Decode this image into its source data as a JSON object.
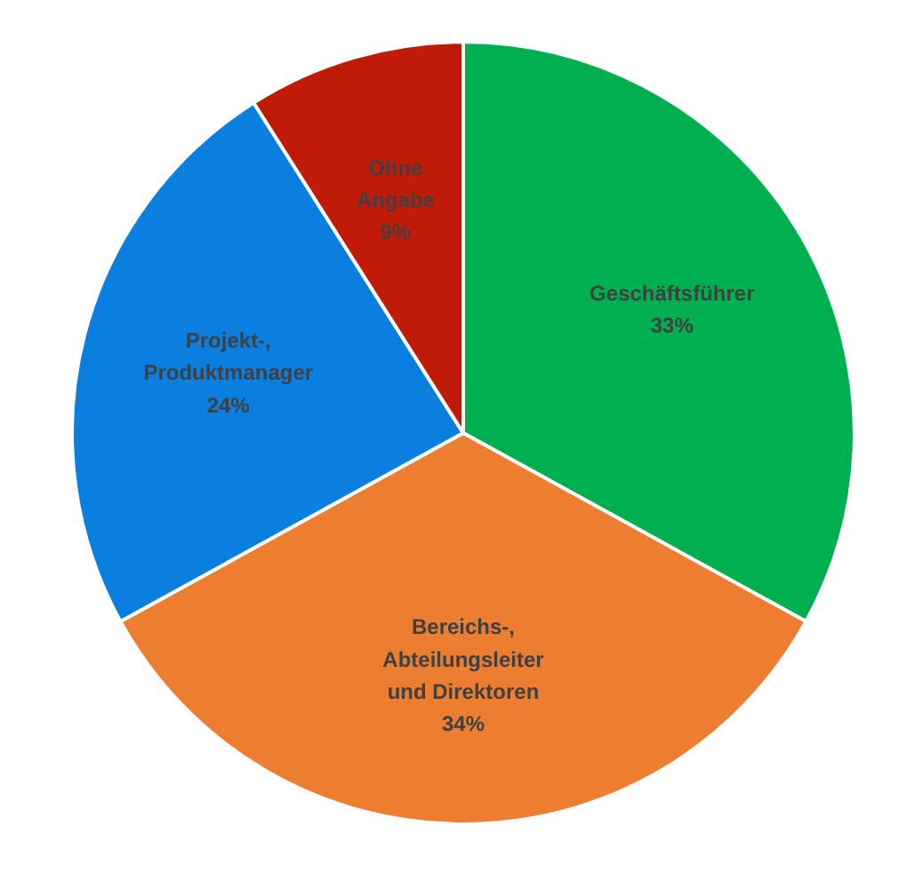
{
  "chart_data": {
    "type": "pie",
    "categories": [
      "Geschäftsführer",
      "Bereichs-,\nAbteilungsleiter\nund Direktoren",
      "Projekt-,\nProduktmanager",
      "Ohne\nAngabe"
    ],
    "values": [
      33,
      34,
      24,
      9
    ],
    "value_labels": [
      "33%",
      "34%",
      "24%",
      "9%"
    ],
    "colors": [
      "#00b050",
      "#ed7d31",
      "#0a7fe0",
      "#c01a08"
    ]
  }
}
